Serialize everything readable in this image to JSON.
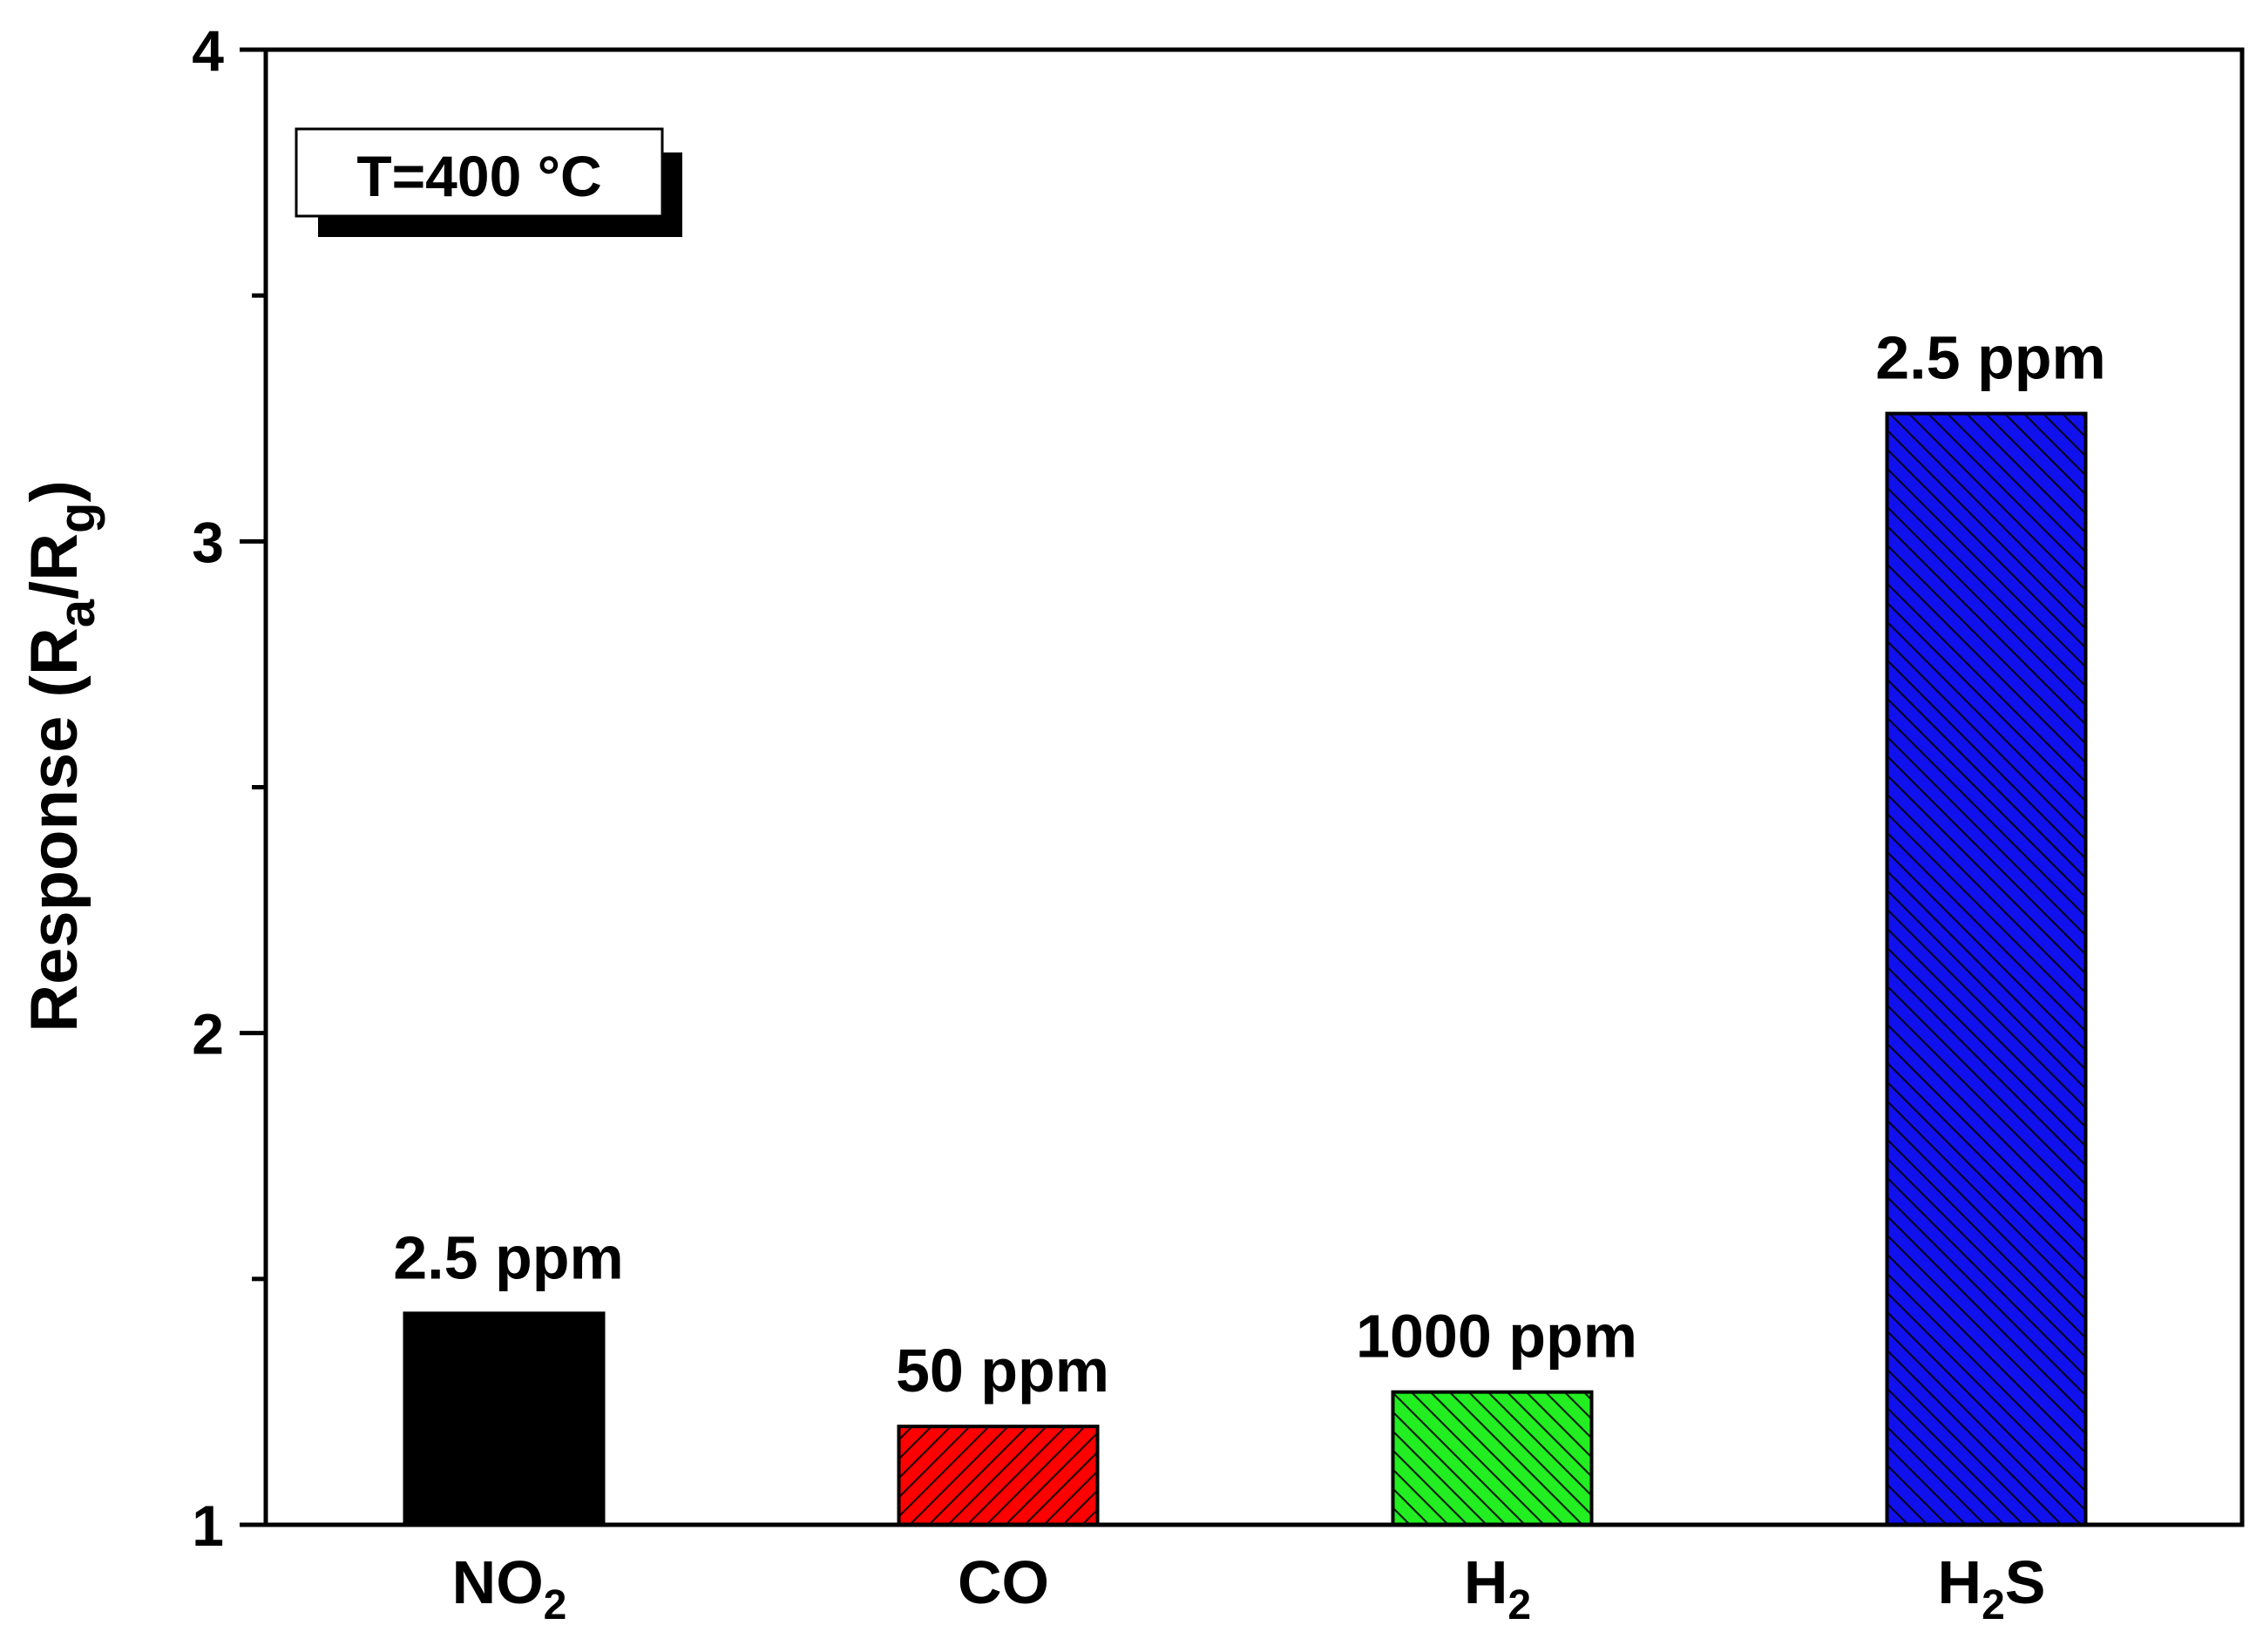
{
  "chart_data": {
    "type": "bar",
    "annotation_box": "T=400 °C",
    "ylabel": {
      "main": "Response (R",
      "sub_a": "a",
      "slash": "/R",
      "sub_g": "g",
      "close": ")"
    },
    "ylim": [
      1,
      4
    ],
    "yticks": [
      1,
      2,
      3,
      4
    ],
    "yminor": [
      1.5,
      2.5,
      3.5
    ],
    "categories": [
      {
        "main": "NO",
        "sub": "2",
        "tail": ""
      },
      {
        "main": "CO",
        "sub": "",
        "tail": ""
      },
      {
        "main": "H",
        "sub": "2",
        "tail": ""
      },
      {
        "main": "H",
        "sub": "2",
        "tail": "S"
      }
    ],
    "values": [
      1.43,
      1.2,
      1.27,
      3.26
    ],
    "bar_labels": [
      "2.5 ppm",
      "50 ppm",
      "1000 ppm",
      "2.5 ppm"
    ],
    "colors": [
      "#000000",
      "#ff0000",
      "#22ee22",
      "#1111ee"
    ],
    "hatch": [
      "forward",
      "forward",
      "backward",
      "backward"
    ],
    "grid": false,
    "legend": "none"
  }
}
